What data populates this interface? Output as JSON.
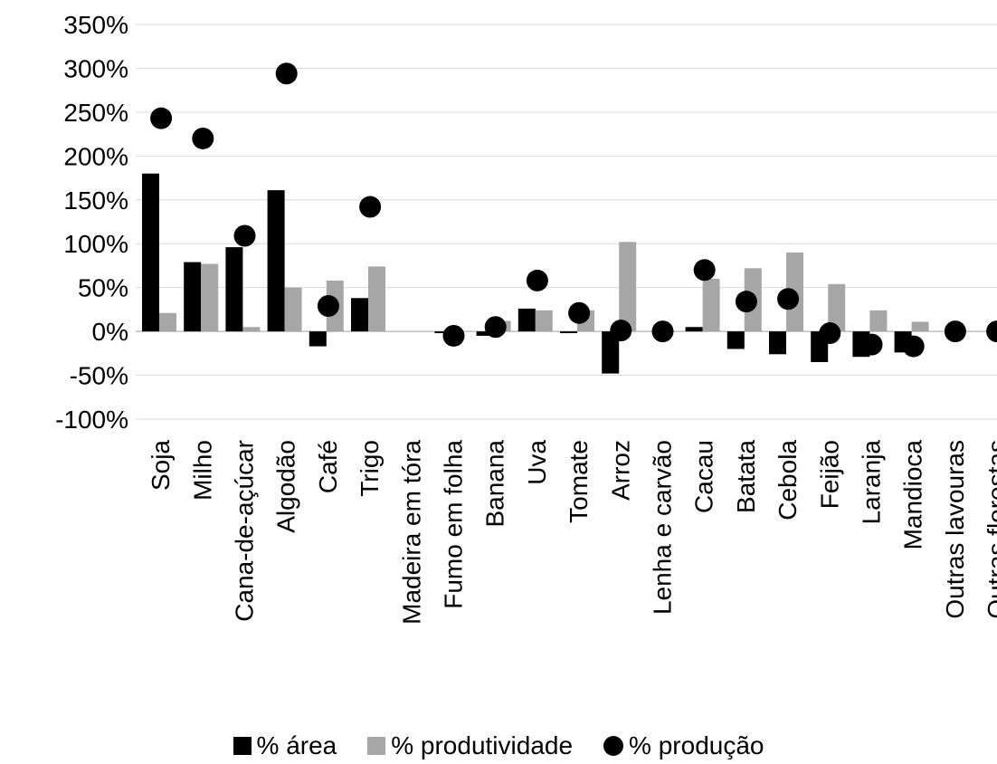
{
  "chart_data": {
    "type": "bar",
    "title": "",
    "xlabel": "",
    "ylabel": "",
    "ylim": [
      -100,
      350
    ],
    "yticks": [
      "-100%",
      "-50%",
      "0%",
      "50%",
      "100%",
      "150%",
      "200%",
      "250%",
      "300%",
      "350%"
    ],
    "ytick_values": [
      -100,
      -50,
      0,
      50,
      100,
      150,
      200,
      250,
      300,
      350
    ],
    "grid": "horizontal",
    "legend_position": "bottom",
    "categories": [
      "Soja",
      "Milho",
      "Cana-de-açúcar",
      "Algodão",
      "Café",
      "Trigo",
      "Madeira em tóra",
      "Fumo em folha",
      "Banana",
      "Uva",
      "Tomate",
      "Arroz",
      "Lenha e carvão",
      "Cacau",
      "Batata",
      "Cebola",
      "Feijão",
      "Laranja",
      "Mandioca",
      "Outras lavouras",
      "Outras florestas"
    ],
    "series": [
      {
        "name": "% área",
        "kind": "bar",
        "color": "#000000",
        "values": [
          180,
          79,
          96,
          161,
          -17,
          38,
          0,
          -2,
          -5,
          26,
          -2,
          -48,
          0,
          5,
          -20,
          -26,
          -35,
          -29,
          -24,
          0,
          0
        ]
      },
      {
        "name": "% produtividade",
        "kind": "bar",
        "color": "#a6a6a6",
        "values": [
          21,
          77,
          5,
          50,
          58,
          74,
          0,
          0,
          12,
          24,
          24,
          102,
          0,
          60,
          72,
          90,
          54,
          24,
          11,
          0,
          0
        ]
      },
      {
        "name": "% produção",
        "kind": "marker",
        "color": "#000000",
        "values": [
          243,
          220,
          109,
          294,
          29,
          142,
          null,
          -5,
          5,
          58,
          21,
          1,
          0,
          70,
          34,
          37,
          -2,
          -15,
          -17,
          0,
          0
        ]
      }
    ]
  }
}
